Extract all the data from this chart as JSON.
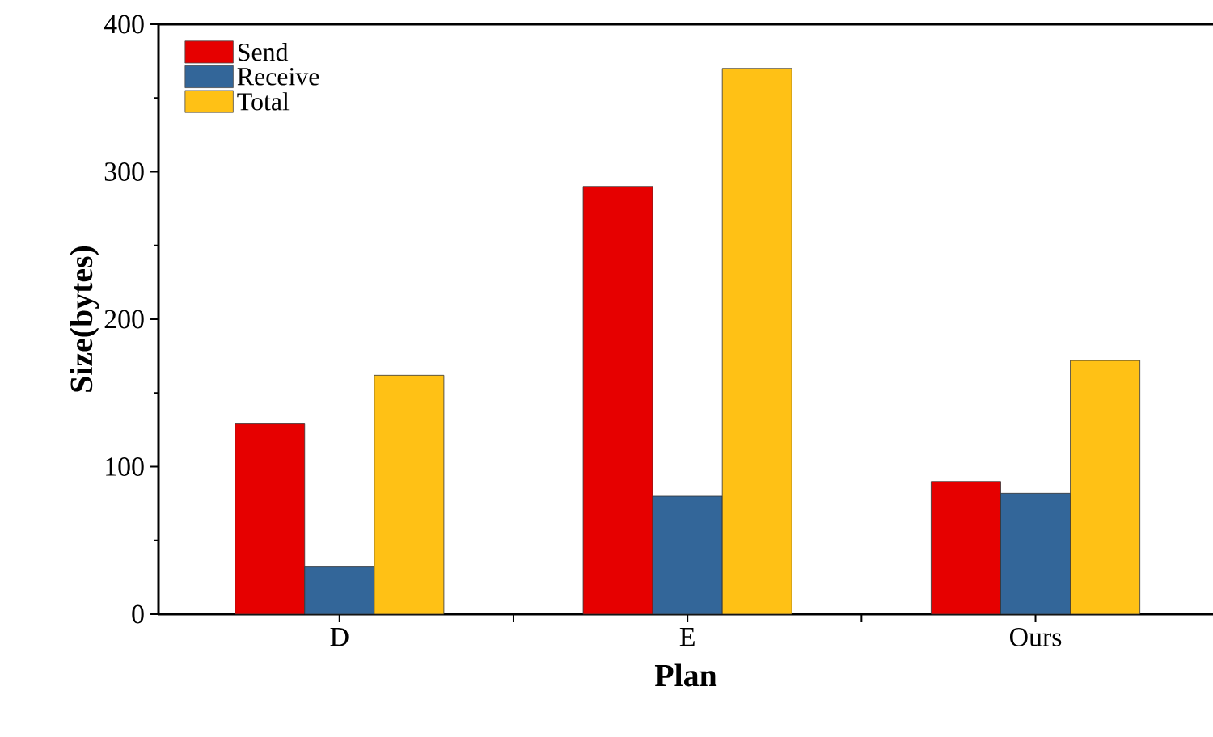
{
  "chart_data": {
    "type": "bar",
    "xlabel": "Plan",
    "ylabel": "Size(bytes)",
    "categories": [
      "D",
      "E",
      "Ours"
    ],
    "series": [
      {
        "name": "Send",
        "color": "#e60000",
        "values": [
          129,
          290,
          90
        ]
      },
      {
        "name": "Receive",
        "color": "#336699",
        "values": [
          32,
          80,
          82
        ]
      },
      {
        "name": "Total",
        "color": "#ffc115",
        "values": [
          162,
          370,
          172
        ]
      }
    ],
    "ylim": [
      0,
      400
    ],
    "yticks": [
      0,
      100,
      200,
      300,
      400
    ],
    "grid": false,
    "legend": "top left"
  }
}
